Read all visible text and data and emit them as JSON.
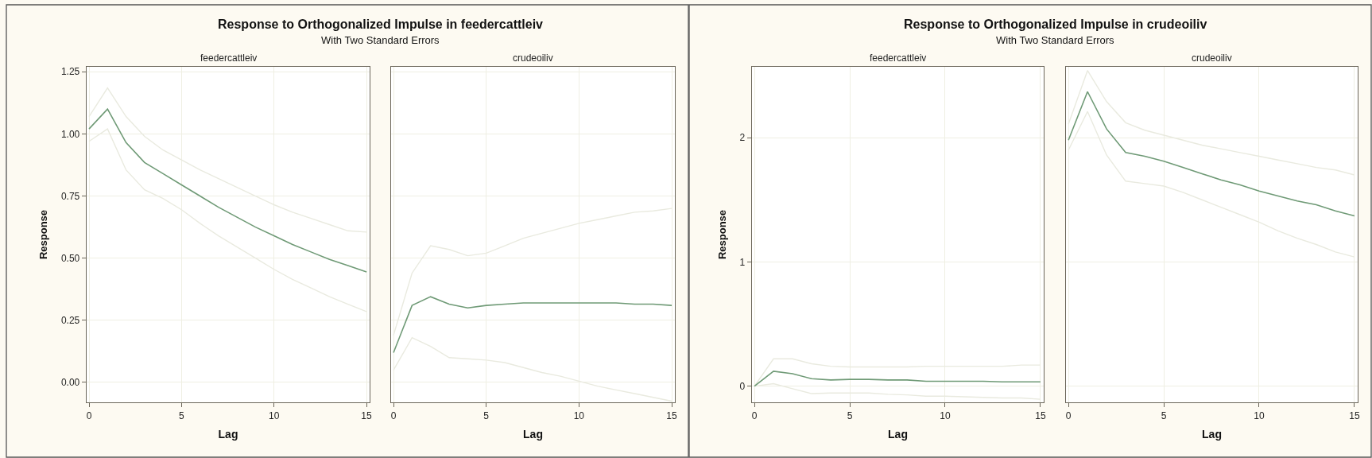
{
  "chart_data": [
    {
      "type": "line",
      "title": "feedercattleiv",
      "xlabel": "Lag",
      "ylabel": "Response",
      "annotations": [
        "Response to Orthogonalized Impulse in feedercattleiv",
        "With Two Standard Errors"
      ],
      "x": [
        0,
        1,
        2,
        3,
        4,
        5,
        6,
        7,
        8,
        9,
        10,
        11,
        12,
        13,
        14,
        15
      ],
      "xlim": [
        -0.13,
        15.17
      ],
      "xticks": [
        0,
        5,
        10,
        15
      ],
      "ylim": [
        -0.08,
        1.27
      ],
      "yticks": [
        {
          "value": 0,
          "label": "0.00"
        },
        0.25,
        {
          "value": 0.5,
          "label": "0.50"
        },
        0.75,
        {
          "value": 1,
          "label": "1.00"
        },
        1.25
      ],
      "grid": true,
      "marker": "none",
      "line_style": "solid",
      "series": [
        {
          "color": "#e9eadf",
          "values": [
            1.07,
            1.185,
            1.07,
            0.99,
            0.935,
            0.895,
            0.855,
            0.82,
            0.785,
            0.75,
            0.715,
            0.685,
            0.66,
            0.635,
            0.61,
            0.605
          ]
        },
        {
          "color": "#e9eadf",
          "values": [
            0.97,
            1.02,
            0.855,
            0.775,
            0.74,
            0.695,
            0.64,
            0.59,
            0.545,
            0.5,
            0.455,
            0.415,
            0.38,
            0.345,
            0.315,
            0.285
          ]
        },
        {
          "color": "#6f9a76",
          "values": [
            1.02,
            1.1,
            0.965,
            0.885,
            0.84,
            0.795,
            0.75,
            0.705,
            0.665,
            0.625,
            0.59,
            0.555,
            0.525,
            0.495,
            0.47,
            0.445
          ]
        }
      ]
    },
    {
      "type": "line",
      "title": "crudeoiliv",
      "xlabel": "Lag",
      "x": [
        0,
        1,
        2,
        3,
        4,
        5,
        6,
        7,
        8,
        9,
        10,
        11,
        12,
        13,
        14,
        15
      ],
      "xlim": [
        -0.13,
        15.17
      ],
      "xticks": [
        0,
        5,
        10,
        15
      ],
      "ylim": [
        -0.08,
        1.27
      ],
      "yticks": [
        0,
        0.25,
        0.5,
        0.75,
        1,
        1.25
      ],
      "tick_labels": "x",
      "grid": true,
      "marker": "none",
      "line_style": "solid",
      "series": [
        {
          "color": "#e9eadf",
          "values": [
            0.19,
            0.44,
            0.55,
            0.535,
            0.51,
            0.52,
            0.55,
            0.58,
            0.6,
            0.62,
            0.64,
            0.655,
            0.67,
            0.685,
            0.69,
            0.7
          ]
        },
        {
          "color": "#e9eadf",
          "values": [
            0.05,
            0.18,
            0.145,
            0.1,
            0.095,
            0.09,
            0.08,
            0.06,
            0.04,
            0.025,
            0.005,
            -0.015,
            -0.03,
            -0.045,
            -0.06,
            -0.075
          ]
        },
        {
          "color": "#6f9a76",
          "values": [
            0.12,
            0.31,
            0.345,
            0.315,
            0.3,
            0.31,
            0.315,
            0.32,
            0.32,
            0.32,
            0.32,
            0.32,
            0.32,
            0.315,
            0.315,
            0.31
          ]
        }
      ]
    },
    {
      "type": "line",
      "title": "feedercattleiv",
      "xlabel": "Lag",
      "ylabel": "Response",
      "annotations": [
        "Response to Orthogonalized Impulse in crudeoiliv",
        "With Two Standard Errors"
      ],
      "x": [
        0,
        1,
        2,
        3,
        4,
        5,
        6,
        7,
        8,
        9,
        10,
        11,
        12,
        13,
        14,
        15
      ],
      "xlim": [
        -0.13,
        15.17
      ],
      "xticks": [
        0,
        5,
        10,
        15
      ],
      "ylim": [
        -0.13,
        2.57
      ],
      "yticks": [
        0,
        1,
        2
      ],
      "grid": true,
      "marker": "none",
      "line_style": "solid",
      "series": [
        {
          "color": "#e9eadf",
          "values": [
            0,
            0.22,
            0.22,
            0.18,
            0.16,
            0.155,
            0.155,
            0.155,
            0.155,
            0.16,
            0.16,
            0.16,
            0.16,
            0.16,
            0.17,
            0.17
          ]
        },
        {
          "color": "#e9eadf",
          "values": [
            0,
            0.02,
            -0.02,
            -0.06,
            -0.055,
            -0.055,
            -0.055,
            -0.065,
            -0.07,
            -0.08,
            -0.08,
            -0.085,
            -0.09,
            -0.095,
            -0.095,
            -0.105
          ]
        },
        {
          "color": "#6f9a76",
          "values": [
            0,
            0.12,
            0.1,
            0.06,
            0.05,
            0.055,
            0.055,
            0.05,
            0.05,
            0.04,
            0.04,
            0.04,
            0.04,
            0.035,
            0.035,
            0.035
          ]
        }
      ]
    },
    {
      "type": "line",
      "title": "crudeoiliv",
      "xlabel": "Lag",
      "x": [
        0,
        1,
        2,
        3,
        4,
        5,
        6,
        7,
        8,
        9,
        10,
        11,
        12,
        13,
        14,
        15
      ],
      "xlim": [
        -0.13,
        15.17
      ],
      "xticks": [
        0,
        5,
        10,
        15
      ],
      "ylim": [
        -0.13,
        2.57
      ],
      "yticks": [
        0,
        1,
        2
      ],
      "tick_labels": "x",
      "grid": true,
      "marker": "none",
      "line_style": "solid",
      "series": [
        {
          "color": "#e9eadf",
          "values": [
            2.11,
            2.54,
            2.29,
            2.12,
            2.06,
            2.02,
            1.98,
            1.94,
            1.91,
            1.88,
            1.85,
            1.82,
            1.79,
            1.76,
            1.74,
            1.7
          ]
        },
        {
          "color": "#e9eadf",
          "values": [
            1.9,
            2.21,
            1.86,
            1.65,
            1.63,
            1.61,
            1.56,
            1.5,
            1.44,
            1.38,
            1.32,
            1.25,
            1.19,
            1.14,
            1.08,
            1.04
          ]
        },
        {
          "color": "#6f9a76",
          "values": [
            1.98,
            2.37,
            2.07,
            1.88,
            1.85,
            1.81,
            1.76,
            1.71,
            1.66,
            1.62,
            1.57,
            1.53,
            1.49,
            1.46,
            1.41,
            1.37
          ]
        }
      ]
    }
  ]
}
